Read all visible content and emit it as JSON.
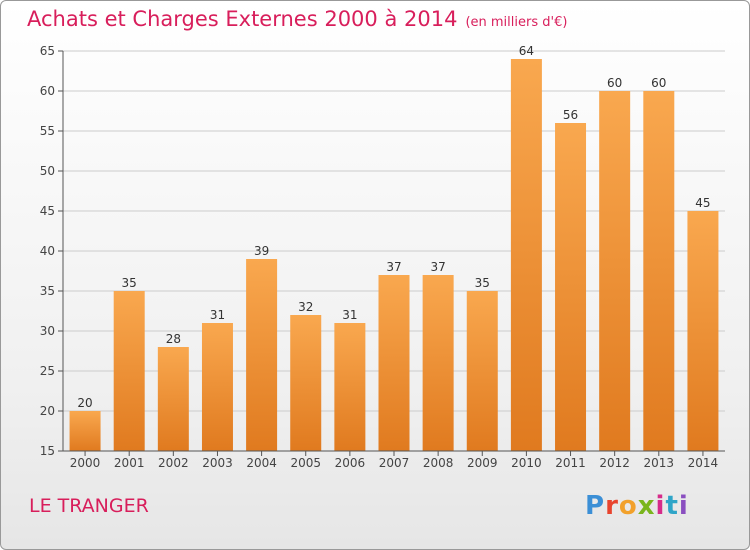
{
  "title": "Achats et Charges Externes 2000 à 2014",
  "unit": "(en milliers d'€)",
  "commune": "LE TRANGER",
  "logo": "Proxiti",
  "colors": {
    "title": "#d81e5b",
    "bar_light": "#f7a14b",
    "bar_dark": "#e07a1f",
    "grid": "#cccccc"
  },
  "chart_data": {
    "type": "bar",
    "categories": [
      "2000",
      "2001",
      "2002",
      "2003",
      "2004",
      "2005",
      "2006",
      "2007",
      "2008",
      "2009",
      "2010",
      "2011",
      "2012",
      "2013",
      "2014"
    ],
    "values": [
      20,
      35,
      28,
      31,
      39,
      32,
      31,
      37,
      37,
      35,
      64,
      56,
      60,
      60,
      45
    ],
    "ylim": [
      15,
      65
    ],
    "yticks": [
      15,
      20,
      25,
      30,
      35,
      40,
      45,
      50,
      55,
      60,
      65
    ],
    "grid": true,
    "data_labels": true
  }
}
